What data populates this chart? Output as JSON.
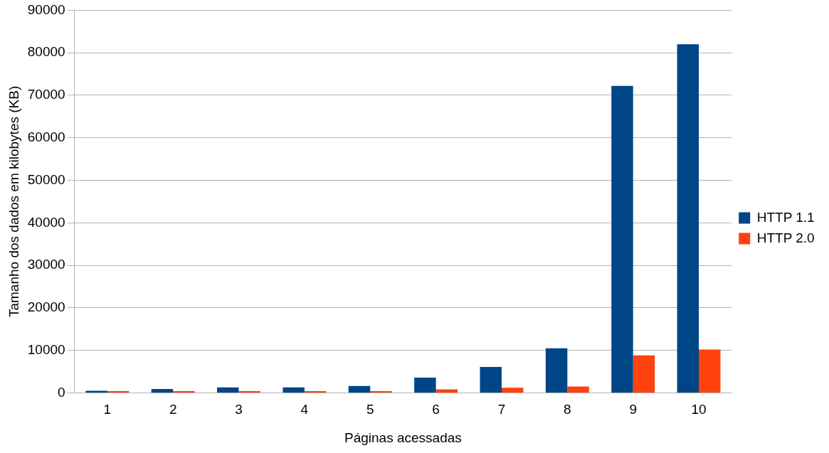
{
  "chart_data": {
    "type": "bar",
    "xlabel": "Páginas acessadas",
    "ylabel": "Tamanho dos dados em kilobytes (KB)",
    "categories": [
      "1",
      "2",
      "3",
      "4",
      "5",
      "6",
      "7",
      "8",
      "9",
      "10"
    ],
    "series": [
      {
        "name": "HTTP 1.1",
        "color": "#004586",
        "values": [
          500,
          900,
          1300,
          1300,
          1600,
          3600,
          6100,
          10500,
          72200,
          82000
        ]
      },
      {
        "name": "HTTP 2.0",
        "color": "#ff420e",
        "values": [
          400,
          400,
          400,
          400,
          400,
          800,
          1200,
          1500,
          8800,
          10200
        ]
      }
    ],
    "ylim": [
      0,
      90000
    ],
    "yticks": [
      0,
      10000,
      20000,
      30000,
      40000,
      50000,
      60000,
      70000,
      80000,
      90000
    ],
    "grid": "y",
    "legend": "right"
  }
}
